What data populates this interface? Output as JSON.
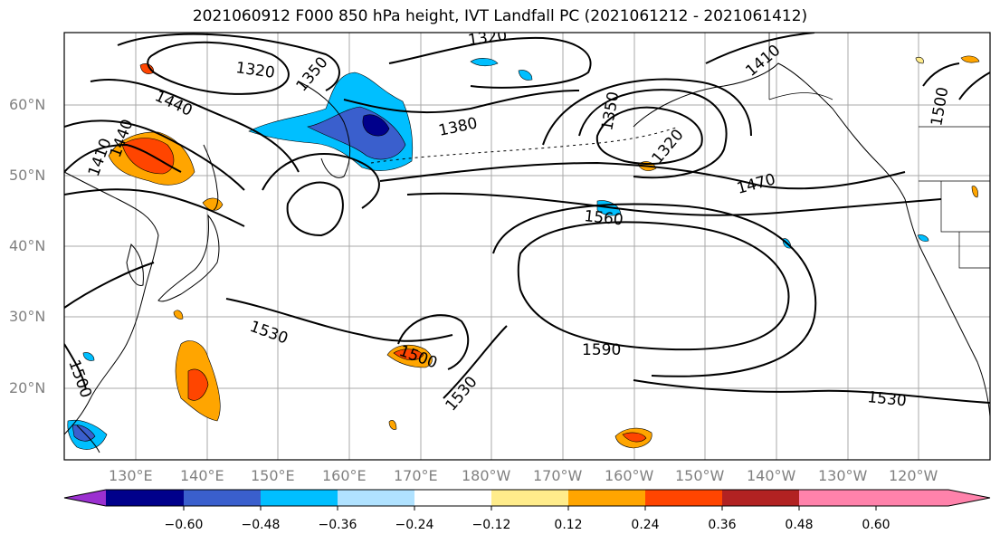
{
  "title": "2021060912 F000 850 hPa height, IVT Landfall PC (2021061212 - 2021061412)",
  "lat_labels": [
    "60°N",
    "50°N",
    "40°N",
    "30°N",
    "20°N"
  ],
  "lon_labels": [
    "130°E",
    "140°E",
    "150°E",
    "160°E",
    "170°E",
    "180°W",
    "170°W",
    "160°W",
    "150°W",
    "140°W",
    "130°W",
    "120°W"
  ],
  "contour_labels": [
    "1320",
    "1320",
    "1350",
    "1440",
    "1410",
    "1440",
    "1380",
    "1350",
    "1320",
    "1410",
    "1500",
    "1470",
    "1560",
    "1590",
    "1530",
    "1500",
    "1530",
    "1530",
    "1500"
  ],
  "colorbar": {
    "tick_labels": [
      "−0.60",
      "−0.48",
      "−0.36",
      "−0.24",
      "−0.12",
      "0.12",
      "0.24",
      "0.36",
      "0.48",
      "0.60"
    ],
    "colors": [
      "#9b30d0",
      "#00008b",
      "#3a5fcd",
      "#00bfff",
      "#b0e2ff",
      "#ffffff",
      "#ffec8b",
      "#ffa500",
      "#ff4500",
      "#b22222",
      "#ff82ab"
    ]
  }
}
